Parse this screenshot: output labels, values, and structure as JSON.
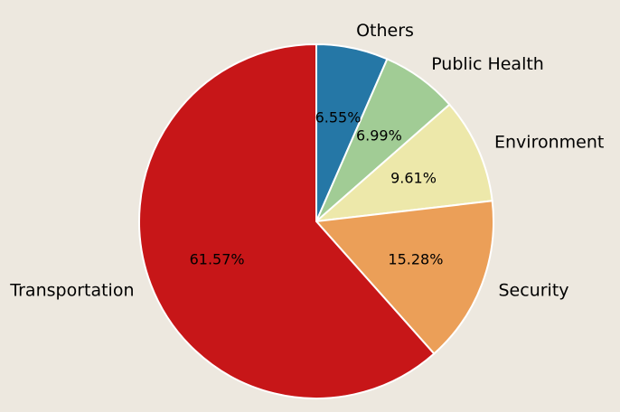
{
  "chart_data": {
    "type": "pie",
    "slices": [
      {
        "label": "Others",
        "value": 6.55,
        "pct_label": "6.55%",
        "color": "#2577A6"
      },
      {
        "label": "Public Health",
        "value": 6.99,
        "pct_label": "6.99%",
        "color": "#A1CC95"
      },
      {
        "label": "Environment",
        "value": 9.61,
        "pct_label": "9.61%",
        "color": "#EDE8AA"
      },
      {
        "label": "Security",
        "value": 15.28,
        "pct_label": "15.28%",
        "color": "#EB9F58"
      },
      {
        "label": "Transportation",
        "value": 61.57,
        "pct_label": "61.57%",
        "color": "#C71618"
      }
    ],
    "start": "top",
    "direction": "clockwise",
    "background": "#EDE8DF"
  }
}
